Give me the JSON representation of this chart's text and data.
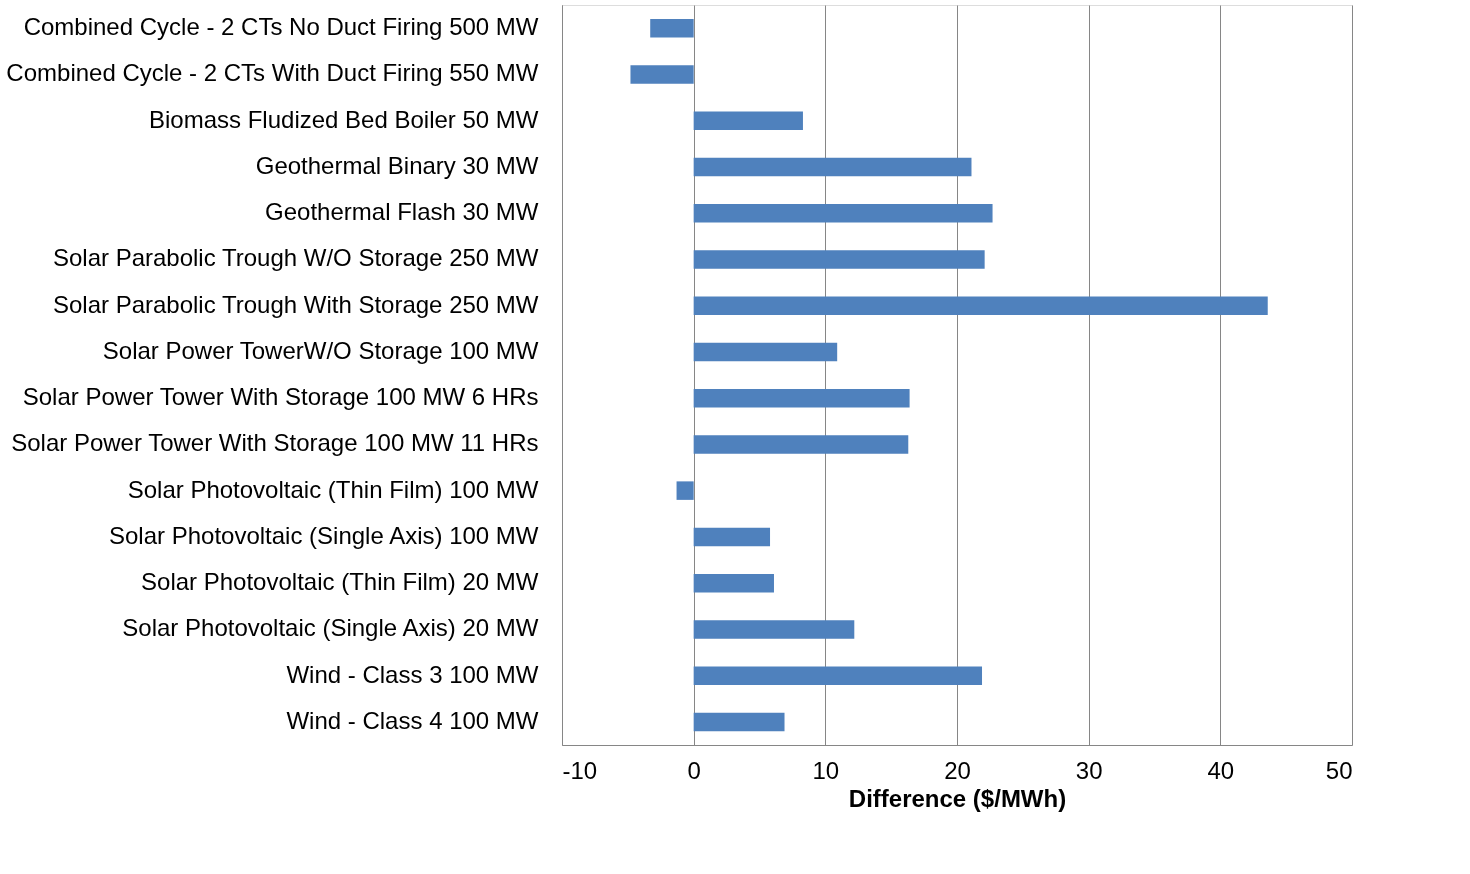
{
  "chart_data": {
    "type": "bar",
    "orientation": "horizontal",
    "xlabel": "Difference ($/MWh)",
    "categories": [
      "Combined Cycle - 2 CTs No Duct Firing 500 MW",
      "Combined Cycle - 2 CTs With Duct Firing 550 MW",
      "Biomass Fludized Bed Boiler 50 MW",
      "Geothermal  Binary 30 MW",
      "Geothermal  Flash 30 MW",
      "Solar Parabolic Trough W/O Storage 250 MW",
      "Solar Parabolic Trough With Storage 250 MW",
      "Solar Power TowerW/O Storage 100 MW",
      "Solar Power Tower With Storage 100 MW 6 HRs",
      "Solar Power Tower With Storage 100 MW 11 HRs",
      "Solar Photovoltaic (Thin Film) 100 MW",
      "Solar Photovoltaic (Single Axis) 100 MW",
      "Solar Photovoltaic (Thin Film) 20 MW",
      "Solar Photovoltaic (Single Axis) 20 MW",
      "Wind - Class 3 100 MW",
      "Wind - Class 4 100 MW"
    ],
    "values": [
      -3.3,
      -4.8,
      8.3,
      21.1,
      22.7,
      22.1,
      43.6,
      10.9,
      16.4,
      16.3,
      -1.3,
      5.8,
      6.1,
      12.2,
      21.9,
      6.9
    ],
    "color": "#4f81bd",
    "xlim": [
      -10,
      50
    ],
    "xticks": [
      -10,
      0,
      10,
      20,
      30,
      40,
      50
    ],
    "grid": "x"
  }
}
